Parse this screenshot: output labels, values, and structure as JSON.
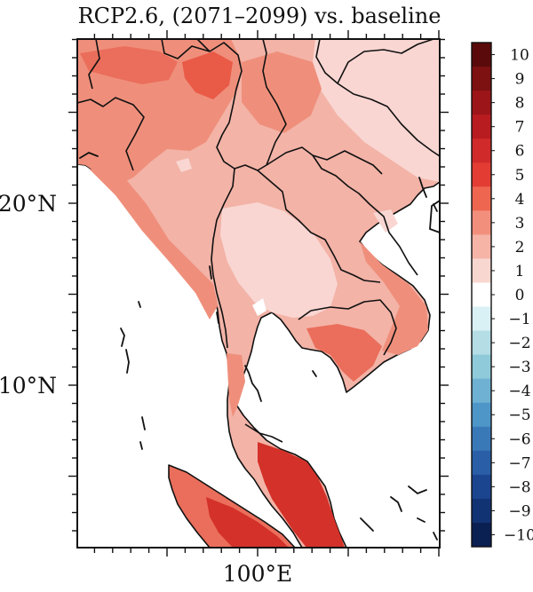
{
  "title": "RCP2.6, (2071–2099) vs. baseline",
  "axes": {
    "y_labels": [
      {
        "value": 20,
        "text": "20°N"
      },
      {
        "value": 10,
        "text": "10°N"
      }
    ],
    "x_labels": [
      {
        "value": 100,
        "text": "100°E"
      }
    ]
  },
  "colorbar": {
    "labels": [
      "10",
      "9",
      "8",
      "7",
      "6",
      "5",
      "4",
      "3",
      "2",
      "1",
      "0",
      "−1",
      "−2",
      "−3",
      "−4",
      "−5",
      "−6",
      "−7",
      "−8",
      "−9",
      "−10"
    ],
    "colors": [
      "#5a0a0a",
      "#7d1010",
      "#9c1518",
      "#b81c20",
      "#d12a2a",
      "#e23c33",
      "#ee6650",
      "#f28f7c",
      "#f5b4a6",
      "#f8d7d0",
      "#ffffff",
      "#d9f0f5",
      "#b4dde6",
      "#8ecad9",
      "#6fb1d2",
      "#4f96c8",
      "#3a79b8",
      "#2a5ea6",
      "#1c4590",
      "#123373",
      "#0a1f52"
    ]
  },
  "palette": {
    "land_light": "#f9d6d2",
    "land_mid": "#f3b3a7",
    "land_orange": "#ef8f7b",
    "land_strong": "#ea6e5b",
    "land_red": "#d33129",
    "border": "#111111"
  }
}
